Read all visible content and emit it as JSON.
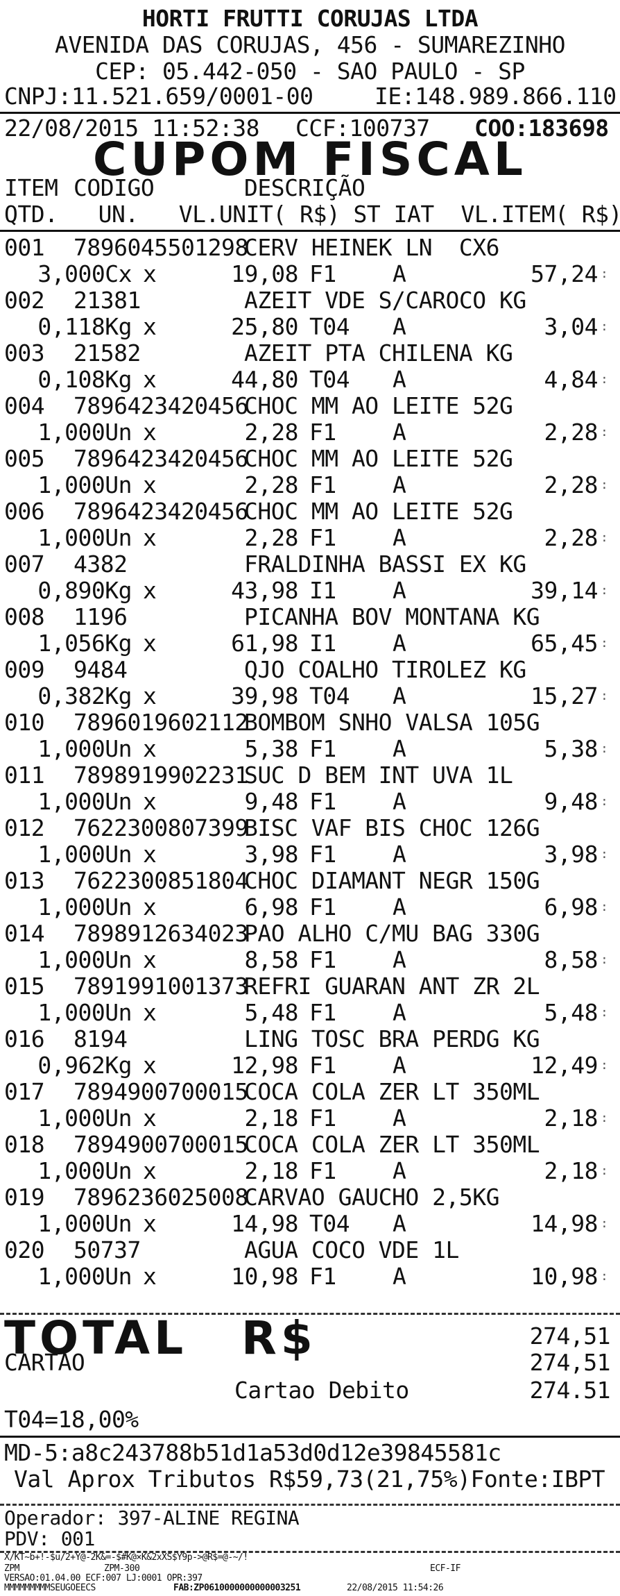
{
  "header": {
    "company": "HORTI FRUTTI CORUJAS LTDA",
    "address": "AVENIDA DAS CORUJAS, 456 - SUMAREZINHO",
    "cep_city": "CEP: 05.442-050 - SAO PAULO - SP",
    "cnpj": "CNPJ:11.521.659/0001-00",
    "ie": "IE:148.989.866.110"
  },
  "doc_info": {
    "datetime": "22/08/2015 11:52:38",
    "ccf": "CCF:100737",
    "coo": "COO:183698"
  },
  "title": "CUPOM  FISCAL",
  "columns": {
    "line1_item": "ITEM",
    "line1_codigo": "CODIGO",
    "line1_descricao": "DESCRIÇÃO",
    "line2": "QTD.   UN.   VL.UNIT( R$) ST IAT  VL.ITEM( R$)"
  },
  "items": [
    {
      "n": "001",
      "code": "7896045501298",
      "desc": "CERV HEINEK LN  CX6",
      "qty": "3,000Cx",
      "unit": "19,08",
      "st": "F1",
      "iat": "A",
      "total": "57,24"
    },
    {
      "n": "002",
      "code": "21381",
      "desc": "AZEIT VDE S/CAROCO KG",
      "qty": "0,118Kg",
      "unit": "25,80",
      "st": "T04",
      "iat": "A",
      "total": "3,04"
    },
    {
      "n": "003",
      "code": "21582",
      "desc": "AZEIT PTA CHILENA KG",
      "qty": "0,108Kg",
      "unit": "44,80",
      "st": "T04",
      "iat": "A",
      "total": "4,84"
    },
    {
      "n": "004",
      "code": "7896423420456",
      "desc": "CHOC MM AO LEITE 52G",
      "qty": "1,000Un",
      "unit": "2,28",
      "st": "F1",
      "iat": "A",
      "total": "2,28"
    },
    {
      "n": "005",
      "code": "7896423420456",
      "desc": "CHOC MM AO LEITE 52G",
      "qty": "1,000Un",
      "unit": "2,28",
      "st": "F1",
      "iat": "A",
      "total": "2,28"
    },
    {
      "n": "006",
      "code": "7896423420456",
      "desc": "CHOC MM AO LEITE 52G",
      "qty": "1,000Un",
      "unit": "2,28",
      "st": "F1",
      "iat": "A",
      "total": "2,28"
    },
    {
      "n": "007",
      "code": "4382",
      "desc": "FRALDINHA BASSI EX KG",
      "qty": "0,890Kg",
      "unit": "43,98",
      "st": "I1",
      "iat": "A",
      "total": "39,14"
    },
    {
      "n": "008",
      "code": "1196",
      "desc": "PICANHA BOV MONTANA KG",
      "qty": "1,056Kg",
      "unit": "61,98",
      "st": "I1",
      "iat": "A",
      "total": "65,45"
    },
    {
      "n": "009",
      "code": "9484",
      "desc": "QJO COALHO TIROLEZ KG",
      "qty": "0,382Kg",
      "unit": "39,98",
      "st": "T04",
      "iat": "A",
      "total": "15,27"
    },
    {
      "n": "010",
      "code": "7896019602112",
      "desc": "BOMBOM SNHO VALSA 105G",
      "qty": "1,000Un",
      "unit": "5,38",
      "st": "F1",
      "iat": "A",
      "total": "5,38"
    },
    {
      "n": "011",
      "code": "7898919902231",
      "desc": "SUC D BEM INT UVA 1L",
      "qty": "1,000Un",
      "unit": "9,48",
      "st": "F1",
      "iat": "A",
      "total": "9,48"
    },
    {
      "n": "012",
      "code": "7622300807399",
      "desc": "BISC VAF BIS CHOC 126G",
      "qty": "1,000Un",
      "unit": "3,98",
      "st": "F1",
      "iat": "A",
      "total": "3,98"
    },
    {
      "n": "013",
      "code": "7622300851804",
      "desc": "CHOC DIAMANT NEGR 150G",
      "qty": "1,000Un",
      "unit": "6,98",
      "st": "F1",
      "iat": "A",
      "total": "6,98"
    },
    {
      "n": "014",
      "code": "7898912634023",
      "desc": "PAO ALHO C/MU BAG 330G",
      "qty": "1,000Un",
      "unit": "8,58",
      "st": "F1",
      "iat": "A",
      "total": "8,58"
    },
    {
      "n": "015",
      "code": "7891991001373",
      "desc": "REFRI GUARAN ANT ZR 2L",
      "qty": "1,000Un",
      "unit": "5,48",
      "st": "F1",
      "iat": "A",
      "total": "5,48"
    },
    {
      "n": "016",
      "code": "8194",
      "desc": "LING TOSC BRA PERDG KG",
      "qty": "0,962Kg",
      "unit": "12,98",
      "st": "F1",
      "iat": "A",
      "total": "12,49"
    },
    {
      "n": "017",
      "code": "7894900700015",
      "desc": "COCA COLA ZER LT 350ML",
      "qty": "1,000Un",
      "unit": "2,18",
      "st": "F1",
      "iat": "A",
      "total": "2,18"
    },
    {
      "n": "018",
      "code": "7894900700015",
      "desc": "COCA COLA ZER LT 350ML",
      "qty": "1,000Un",
      "unit": "2,18",
      "st": "F1",
      "iat": "A",
      "total": "2,18"
    },
    {
      "n": "019",
      "code": "7896236025008",
      "desc": "CARVAO GAUCHO 2,5KG",
      "qty": "1,000Un",
      "unit": "14,98",
      "st": "T04",
      "iat": "A",
      "total": "14,98"
    },
    {
      "n": "020",
      "code": "50737",
      "desc": "AGUA COCO VDE 1L",
      "qty": "1,000Un",
      "unit": "10,98",
      "st": "F1",
      "iat": "A",
      "total": "10,98"
    }
  ],
  "x_mark": "x",
  "totals": {
    "total_label": "TOTAL",
    "currency_label": "R$",
    "total_value": "274,51",
    "cartao_label": "CARTAO",
    "cartao_value": "274,51",
    "debito_label": "Cartao Debito",
    "debito_value": "274.51",
    "tax_rate": "T04=18,00%"
  },
  "footer": {
    "md5": "MD-5:a8c243788b51d1a53d0d12e39845581c",
    "tributos": "Val Aprox Tributos R$59,73(21,75%)Fonte:IBPT",
    "operador": "Operador: 397-ALINE REGINA",
    "pdv": "PDV: 001",
    "hash": "X/KT~b+!-$u/2+Y@-2K&=-$#K@×K&2xXS$Y9p->@R$=@-~/!",
    "zpm_left": "ZPM",
    "zpm_mid": "ZPM-300",
    "ecf_if": "ECF-IF",
    "versao": "VERSAO:01.04.00 ECF:007 LJ:0001 OPR:397",
    "serial": "MMMMMMMMMSEUGOEECS",
    "end_datetime": "22/08/2015 11:54:26",
    "fab": "FAB:ZP0610000000000003251"
  }
}
